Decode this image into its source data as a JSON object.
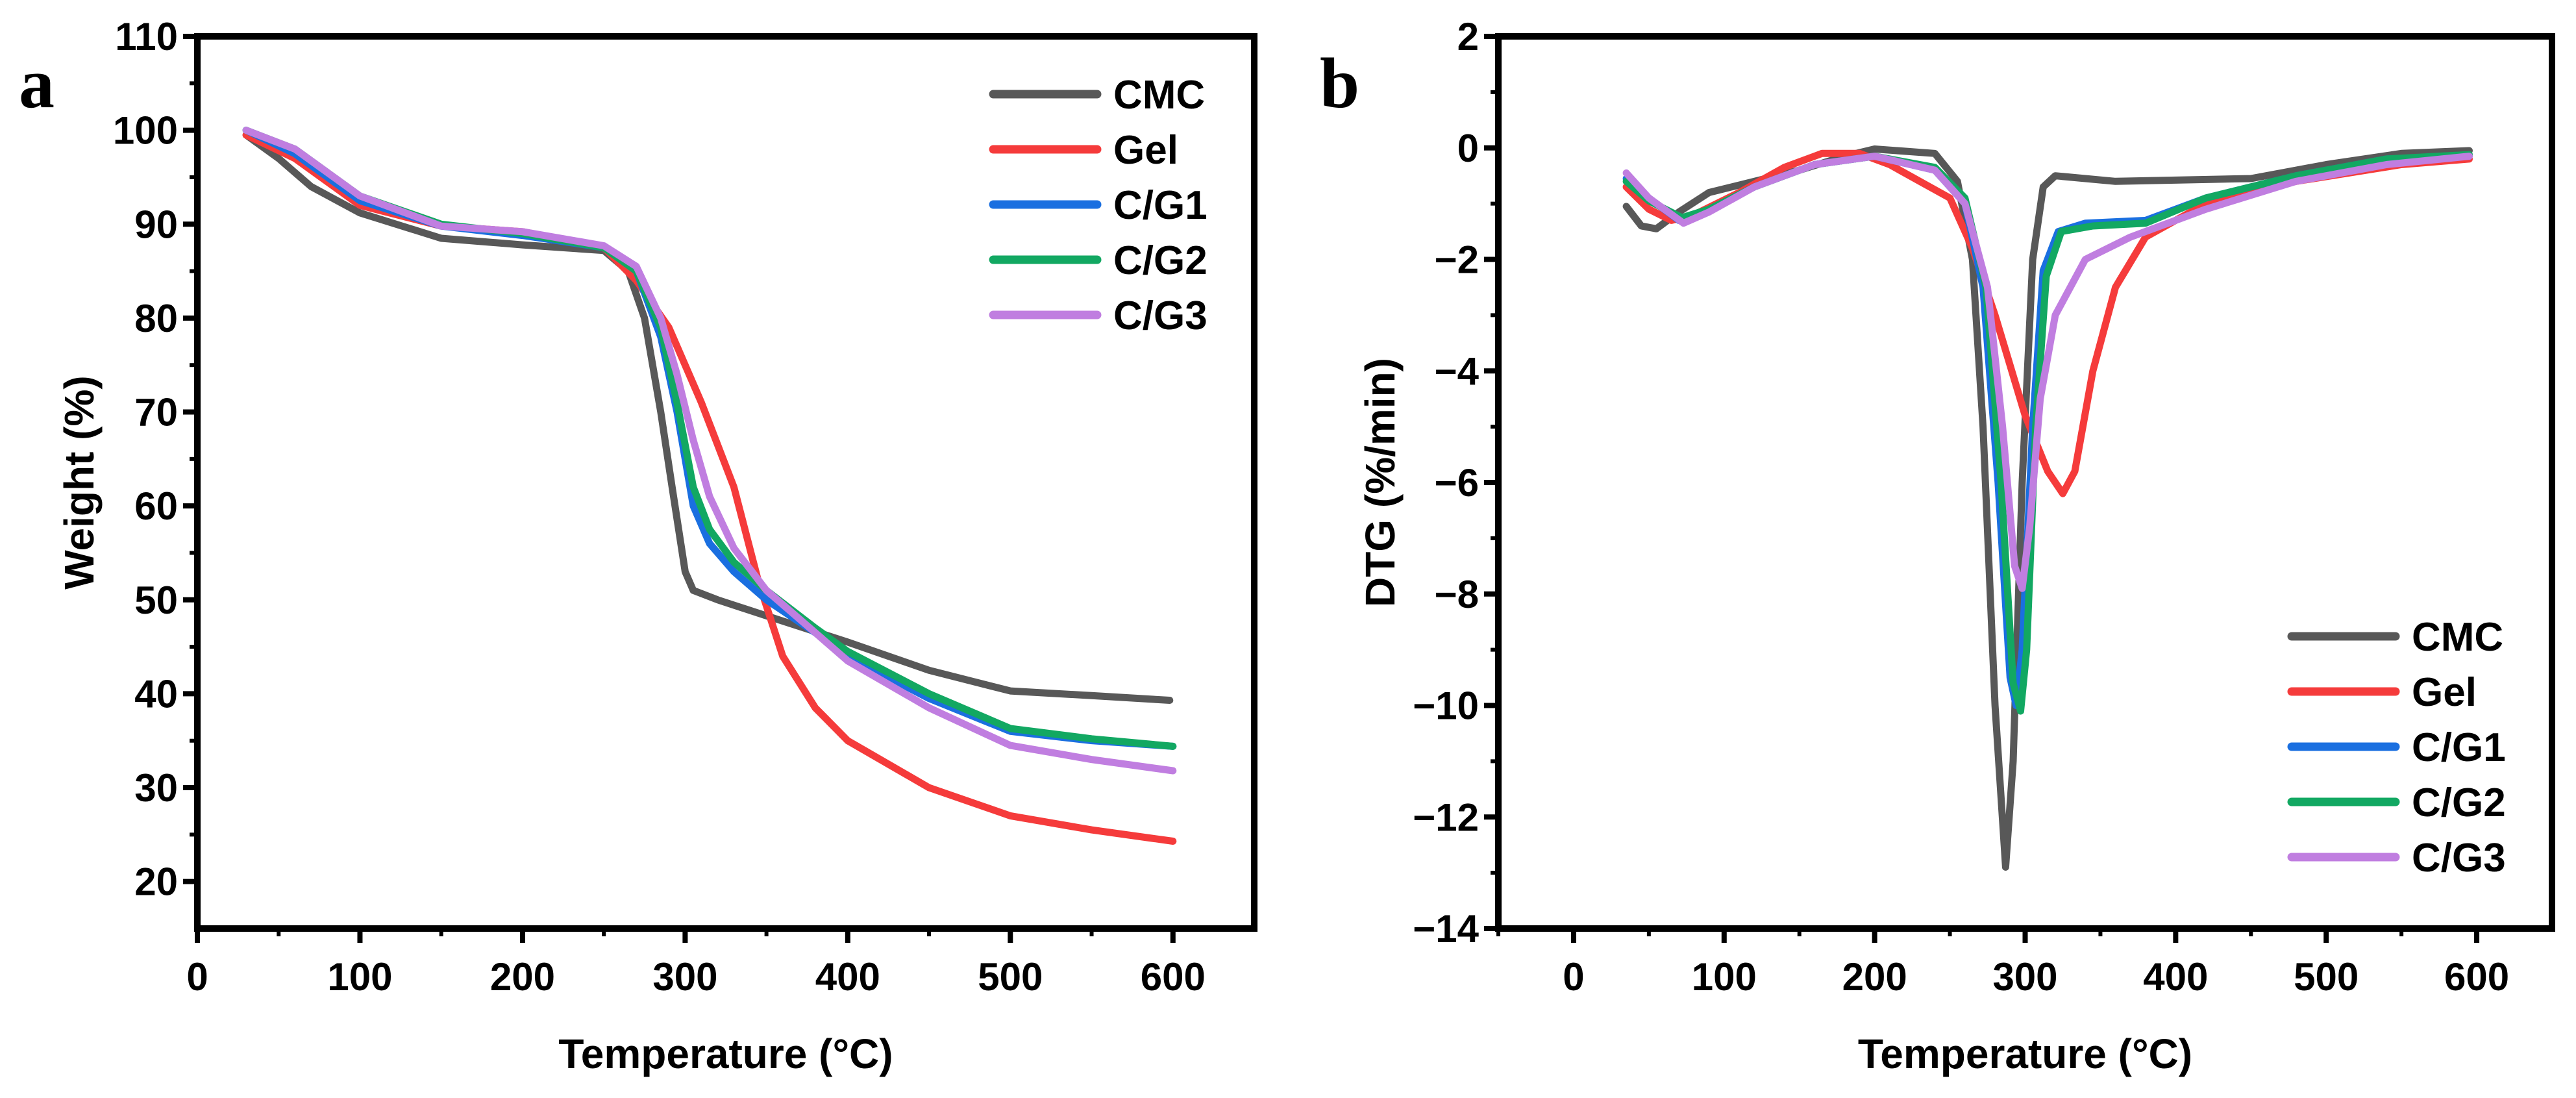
{
  "colors": {
    "CMC": "#585858",
    "Gel": "#f53b3b",
    "C/G1": "#1a6fe0",
    "C/G2": "#12a862",
    "C/G3": "#c07ee0"
  },
  "chart_data": [
    {
      "type": "line",
      "panel_label": "a",
      "xlabel": "Temperature (°C)",
      "ylabel": "Weight (%)",
      "xlim": [
        0,
        650
      ],
      "ylim": [
        15,
        110
      ],
      "xticks": [
        0,
        100,
        200,
        300,
        400,
        500,
        600
      ],
      "yticks": [
        20,
        30,
        40,
        50,
        60,
        70,
        80,
        90,
        100,
        110
      ],
      "legend_position": "top-right",
      "series": [
        {
          "name": "CMC",
          "points": [
            [
              30,
              99.5
            ],
            [
              50,
              97
            ],
            [
              70,
              94
            ],
            [
              100,
              91.2
            ],
            [
              150,
              88.5
            ],
            [
              200,
              87.8
            ],
            [
              250,
              87.2
            ],
            [
              265,
              85
            ],
            [
              275,
              80
            ],
            [
              285,
              70
            ],
            [
              292,
              62
            ],
            [
              300,
              53
            ],
            [
              305,
              51
            ],
            [
              320,
              50
            ],
            [
              350,
              48.3
            ],
            [
              400,
              45.5
            ],
            [
              450,
              42.5
            ],
            [
              500,
              40.3
            ],
            [
              550,
              39.8
            ],
            [
              598,
              39.3
            ]
          ]
        },
        {
          "name": "Gel",
          "points": [
            [
              30,
              99.5
            ],
            [
              60,
              97
            ],
            [
              100,
              92
            ],
            [
              150,
              89.8
            ],
            [
              200,
              89.2
            ],
            [
              250,
              87.5
            ],
            [
              270,
              84
            ],
            [
              290,
              79
            ],
            [
              310,
              71
            ],
            [
              330,
              62
            ],
            [
              345,
              52
            ],
            [
              360,
              44
            ],
            [
              380,
              38.5
            ],
            [
              400,
              35
            ],
            [
              450,
              30
            ],
            [
              500,
              27
            ],
            [
              550,
              25.5
            ],
            [
              600,
              24.3
            ]
          ]
        },
        {
          "name": "C/G1",
          "points": [
            [
              30,
              100
            ],
            [
              60,
              97.5
            ],
            [
              100,
              92.5
            ],
            [
              150,
              89.8
            ],
            [
              200,
              88.8
            ],
            [
              250,
              87.5
            ],
            [
              270,
              85
            ],
            [
              285,
              78
            ],
            [
              295,
              70
            ],
            [
              305,
              60
            ],
            [
              315,
              56
            ],
            [
              330,
              53
            ],
            [
              350,
              50
            ],
            [
              380,
              46.5
            ],
            [
              400,
              44
            ],
            [
              450,
              39.5
            ],
            [
              500,
              36
            ],
            [
              550,
              35
            ],
            [
              600,
              34.4
            ]
          ]
        },
        {
          "name": "C/G2",
          "points": [
            [
              30,
              100
            ],
            [
              60,
              98
            ],
            [
              100,
              93
            ],
            [
              150,
              90
            ],
            [
              200,
              89
            ],
            [
              250,
              87.5
            ],
            [
              270,
              85
            ],
            [
              285,
              79
            ],
            [
              295,
              71
            ],
            [
              305,
              62
            ],
            [
              315,
              57.5
            ],
            [
              330,
              54
            ],
            [
              350,
              51
            ],
            [
              380,
              47
            ],
            [
              400,
              44.5
            ],
            [
              450,
              40
            ],
            [
              500,
              36.3
            ],
            [
              550,
              35.2
            ],
            [
              600,
              34.4
            ]
          ]
        },
        {
          "name": "C/G3",
          "points": [
            [
              30,
              100
            ],
            [
              60,
              98
            ],
            [
              100,
              93
            ],
            [
              150,
              89.8
            ],
            [
              200,
              89.2
            ],
            [
              250,
              87.7
            ],
            [
              270,
              85.5
            ],
            [
              285,
              80
            ],
            [
              295,
              74
            ],
            [
              305,
              67
            ],
            [
              315,
              61
            ],
            [
              330,
              55.5
            ],
            [
              350,
              51
            ],
            [
              380,
              46.5
            ],
            [
              400,
              43.5
            ],
            [
              450,
              38.5
            ],
            [
              500,
              34.5
            ],
            [
              550,
              33
            ],
            [
              600,
              31.8
            ]
          ]
        }
      ]
    },
    {
      "type": "line",
      "panel_label": "b",
      "xlabel": "Temperature (°C)",
      "ylabel": "DTG (%/min)",
      "xlim": [
        -50,
        650
      ],
      "ylim": [
        -14,
        2
      ],
      "xticks": [
        0,
        100,
        200,
        300,
        400,
        500,
        600
      ],
      "yticks": [
        -14,
        -12,
        -10,
        -8,
        -6,
        -4,
        -2,
        0,
        2
      ],
      "legend_position": "bottom-right",
      "series": [
        {
          "name": "CMC",
          "points": [
            [
              35,
              -1.05
            ],
            [
              45,
              -1.4
            ],
            [
              55,
              -1.45
            ],
            [
              70,
              -1.15
            ],
            [
              90,
              -0.8
            ],
            [
              120,
              -0.6
            ],
            [
              150,
              -0.4
            ],
            [
              180,
              -0.15
            ],
            [
              200,
              -0.02
            ],
            [
              240,
              -0.1
            ],
            [
              255,
              -0.6
            ],
            [
              265,
              -2
            ],
            [
              272,
              -5
            ],
            [
              280,
              -10
            ],
            [
              287,
              -12.9
            ],
            [
              292,
              -11
            ],
            [
              298,
              -6
            ],
            [
              305,
              -2
            ],
            [
              312,
              -0.7
            ],
            [
              320,
              -0.5
            ],
            [
              360,
              -0.6
            ],
            [
              450,
              -0.55
            ],
            [
              500,
              -0.3
            ],
            [
              550,
              -0.1
            ],
            [
              595,
              -0.05
            ]
          ]
        },
        {
          "name": "Gel",
          "points": [
            [
              35,
              -0.7
            ],
            [
              50,
              -1.1
            ],
            [
              65,
              -1.3
            ],
            [
              80,
              -1.2
            ],
            [
              110,
              -0.8
            ],
            [
              140,
              -0.35
            ],
            [
              165,
              -0.1
            ],
            [
              190,
              -0.1
            ],
            [
              210,
              -0.3
            ],
            [
              230,
              -0.6
            ],
            [
              250,
              -0.9
            ],
            [
              265,
              -1.8
            ],
            [
              280,
              -3
            ],
            [
              300,
              -4.8
            ],
            [
              315,
              -5.8
            ],
            [
              325,
              -6.2
            ],
            [
              333,
              -5.8
            ],
            [
              345,
              -4
            ],
            [
              360,
              -2.5
            ],
            [
              380,
              -1.6
            ],
            [
              420,
              -1
            ],
            [
              480,
              -0.6
            ],
            [
              550,
              -0.3
            ],
            [
              595,
              -0.2
            ]
          ]
        },
        {
          "name": "C/G1",
          "points": [
            [
              35,
              -0.55
            ],
            [
              50,
              -0.9
            ],
            [
              70,
              -1.3
            ],
            [
              90,
              -1.1
            ],
            [
              120,
              -0.7
            ],
            [
              160,
              -0.3
            ],
            [
              200,
              -0.15
            ],
            [
              240,
              -0.4
            ],
            [
              260,
              -1
            ],
            [
              272,
              -2.5
            ],
            [
              282,
              -6
            ],
            [
              290,
              -9.5
            ],
            [
              294,
              -10
            ],
            [
              298,
              -9
            ],
            [
              305,
              -5
            ],
            [
              312,
              -2.2
            ],
            [
              322,
              -1.5
            ],
            [
              340,
              -1.35
            ],
            [
              380,
              -1.3
            ],
            [
              420,
              -0.9
            ],
            [
              480,
              -0.5
            ],
            [
              540,
              -0.2
            ],
            [
              595,
              -0.15
            ]
          ]
        },
        {
          "name": "C/G2",
          "points": [
            [
              35,
              -0.6
            ],
            [
              50,
              -0.95
            ],
            [
              72,
              -1.25
            ],
            [
              90,
              -1.1
            ],
            [
              120,
              -0.7
            ],
            [
              160,
              -0.3
            ],
            [
              200,
              -0.15
            ],
            [
              240,
              -0.35
            ],
            [
              260,
              -0.9
            ],
            [
              274,
              -2.5
            ],
            [
              284,
              -6
            ],
            [
              292,
              -9.6
            ],
            [
              297,
              -10.1
            ],
            [
              301,
              -9
            ],
            [
              307,
              -5
            ],
            [
              314,
              -2.3
            ],
            [
              324,
              -1.5
            ],
            [
              345,
              -1.4
            ],
            [
              380,
              -1.35
            ],
            [
              420,
              -0.9
            ],
            [
              480,
              -0.5
            ],
            [
              540,
              -0.2
            ],
            [
              595,
              -0.12
            ]
          ]
        },
        {
          "name": "C/G3",
          "points": [
            [
              35,
              -0.45
            ],
            [
              50,
              -0.9
            ],
            [
              73,
              -1.35
            ],
            [
              90,
              -1.15
            ],
            [
              120,
              -0.7
            ],
            [
              160,
              -0.3
            ],
            [
              200,
              -0.15
            ],
            [
              240,
              -0.4
            ],
            [
              260,
              -1
            ],
            [
              275,
              -2.5
            ],
            [
              285,
              -5
            ],
            [
              293,
              -7.5
            ],
            [
              298,
              -7.9
            ],
            [
              303,
              -6.8
            ],
            [
              310,
              -4.5
            ],
            [
              320,
              -3
            ],
            [
              340,
              -2
            ],
            [
              370,
              -1.6
            ],
            [
              420,
              -1.1
            ],
            [
              480,
              -0.6
            ],
            [
              540,
              -0.3
            ],
            [
              595,
              -0.15
            ]
          ]
        }
      ]
    }
  ]
}
